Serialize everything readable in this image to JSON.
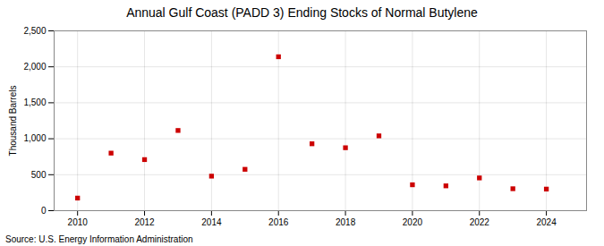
{
  "chart_data": {
    "type": "scatter",
    "title": "Annual Gulf Coast (PADD 3) Ending Stocks of Normal Butylene",
    "ylabel": "Thousand Barrels",
    "source": "Source: U.S. Energy Information Administration",
    "x": [
      2010,
      2011,
      2012,
      2013,
      2014,
      2015,
      2016,
      2017,
      2018,
      2019,
      2020,
      2021,
      2022,
      2023,
      2024
    ],
    "values": [
      175,
      800,
      710,
      1115,
      480,
      575,
      2140,
      930,
      875,
      1040,
      360,
      345,
      455,
      305,
      300
    ],
    "color": "#cc0000",
    "marker": "square",
    "xlim": [
      2009.3,
      2025.2
    ],
    "ylim": [
      0,
      2500
    ],
    "xticks": [
      2010,
      2012,
      2014,
      2016,
      2018,
      2020,
      2022,
      2024
    ],
    "yticks": [
      0,
      500,
      {
        "value": 1000,
        "label": "1,000"
      },
      {
        "value": 1500,
        "label": "1,500"
      },
      {
        "value": 2000,
        "label": "2,000"
      },
      {
        "value": 2500,
        "label": "2,500"
      }
    ],
    "grid": true
  }
}
